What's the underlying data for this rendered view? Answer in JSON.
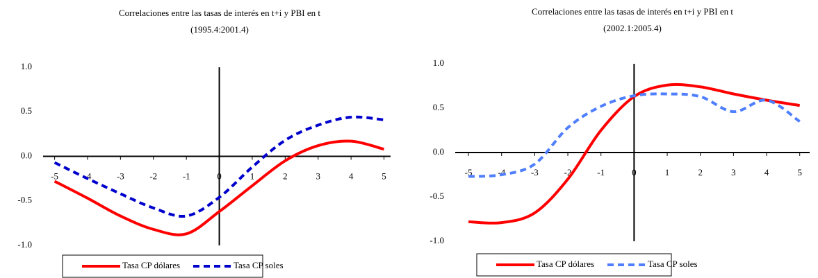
{
  "chart_data": [
    {
      "type": "line",
      "title": "Correlaciones entre las tasas de interés en t+i y  PBI en t",
      "subtitle": "(1995.4:2001.4)",
      "x": [
        -5,
        -4,
        -3,
        -2,
        -1,
        0,
        1,
        2,
        3,
        4,
        5
      ],
      "series": [
        {
          "name": "Tasa CP dólares",
          "color": "#ff0000",
          "values": [
            -0.28,
            -0.47,
            -0.67,
            -0.82,
            -0.87,
            -0.62,
            -0.33,
            -0.05,
            0.12,
            0.17,
            0.08
          ]
        },
        {
          "name": "Tasa CP soles",
          "color": "#0000cc",
          "values": [
            -0.07,
            -0.25,
            -0.42,
            -0.58,
            -0.67,
            -0.46,
            -0.12,
            0.18,
            0.35,
            0.44,
            0.41
          ]
        }
      ],
      "xlim": [
        -5.35,
        5.2
      ],
      "xticks": [
        -5,
        -4,
        -3,
        -2,
        -1,
        0,
        1,
        2,
        3,
        4,
        5
      ],
      "ylim": [
        -1,
        1
      ],
      "yticks": [
        {
          "value": -1,
          "label": "-1.0"
        },
        {
          "value": -0.5,
          "label": "-0.5"
        },
        {
          "value": 0,
          "label": "0.0"
        },
        {
          "value": 0.5,
          "label": "0.5"
        },
        {
          "value": 1,
          "label": "1.0"
        }
      ]
    },
    {
      "type": "line",
      "title": "Correlaciones entre las tasas de interés en t+i y  PBI en t",
      "subtitle": "(2002.1:2005.4)",
      "x": [
        -5,
        -4,
        -3,
        -2,
        -1,
        0,
        1,
        2,
        3,
        4,
        5
      ],
      "series": [
        {
          "name": "Tasa CP dólares",
          "color": "#ff0000",
          "values": [
            -0.78,
            -0.79,
            -0.68,
            -0.3,
            0.25,
            0.63,
            0.76,
            0.74,
            0.66,
            0.59,
            0.53
          ]
        },
        {
          "name": "Tasa CP soles",
          "color": "#4f7fff",
          "values": [
            -0.27,
            -0.25,
            -0.13,
            0.28,
            0.52,
            0.64,
            0.66,
            0.63,
            0.46,
            0.59,
            0.35
          ]
        }
      ],
      "xlim": [
        -5.4,
        5.3
      ],
      "xticks": [
        -5,
        -4,
        -3,
        -2,
        -1,
        0,
        1,
        2,
        3,
        4,
        5
      ],
      "ylim": [
        -1,
        1
      ],
      "yticks": [
        {
          "value": -1,
          "label": "-1.0"
        },
        {
          "value": -0.5,
          "label": "-0.5"
        },
        {
          "value": 0,
          "label": "0.0"
        },
        {
          "value": 0.5,
          "label": "0.5"
        },
        {
          "value": 1,
          "label": "1.0"
        }
      ]
    }
  ]
}
